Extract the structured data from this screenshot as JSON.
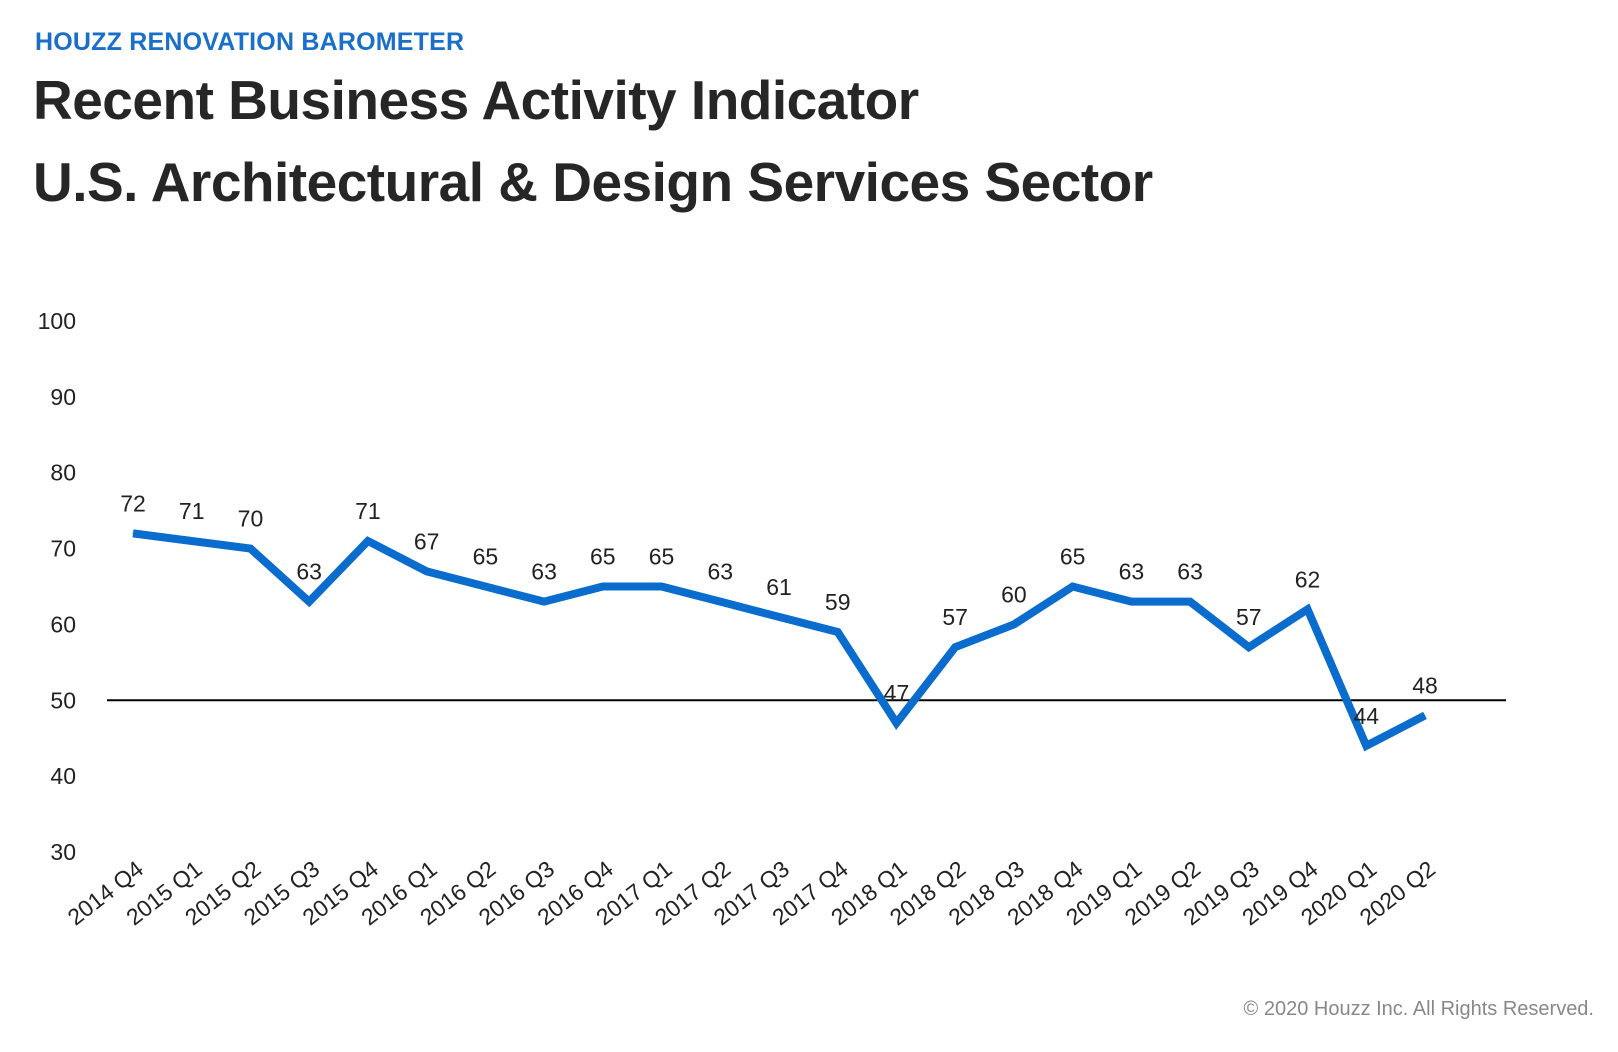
{
  "header": {
    "kicker": "HOUZZ RENOVATION BAROMETER",
    "title_line1": "Recent Business Activity Indicator",
    "title_line2": "U.S. Architectural & Design Services Sector"
  },
  "footer": {
    "copyright": "© 2020 Houzz Inc. All Rights Reserved."
  },
  "colors": {
    "line": "#0a6ccc",
    "reference": "#000000",
    "kicker": "#1a6fc9"
  },
  "chart_data": {
    "type": "line",
    "title": "Recent Business Activity Indicator U.S. Architectural & Design Services Sector",
    "xlabel": "",
    "ylabel": "",
    "ylim": [
      30,
      100
    ],
    "yticks": [
      "100",
      "90",
      "80",
      "70",
      "60",
      "50",
      "40",
      "30"
    ],
    "ytick_values": [
      100,
      90,
      80,
      70,
      60,
      50,
      40,
      30
    ],
    "grid": false,
    "reference_line": 50,
    "categories": [
      "2014 Q4",
      "2015 Q1",
      "2015 Q2",
      "2015 Q3",
      "2015 Q4",
      "2016 Q1",
      "2016 Q2",
      "2016 Q3",
      "2016 Q4",
      "2017 Q1",
      "2017 Q2",
      "2017 Q3",
      "2017 Q4",
      "2018 Q1",
      "2018 Q2",
      "2018 Q3",
      "2018 Q4",
      "2019 Q1",
      "2019 Q2",
      "2019 Q3",
      "2019 Q4",
      "2020 Q1",
      "2020 Q2"
    ],
    "series": [
      {
        "name": "Recent Business Activity Indicator",
        "values": [
          72,
          71,
          70,
          63,
          71,
          67,
          65,
          63,
          65,
          65,
          63,
          61,
          59,
          47,
          57,
          60,
          65,
          63,
          63,
          57,
          62,
          44,
          48
        ]
      }
    ]
  }
}
